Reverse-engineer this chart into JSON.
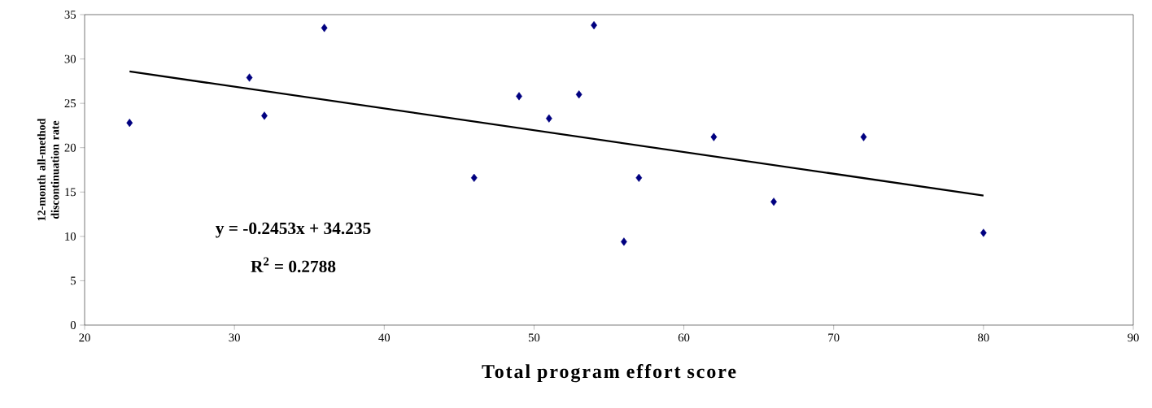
{
  "chart_data": {
    "type": "scatter",
    "xlabel": "Total program effort score",
    "ylabel": "12-month all-method discontinuation rate",
    "xlim": [
      20,
      90
    ],
    "ylim": [
      0,
      35
    ],
    "xticks": [
      20,
      30,
      40,
      50,
      60,
      70,
      80,
      90
    ],
    "yticks": [
      0,
      5,
      10,
      15,
      20,
      25,
      30,
      35
    ],
    "grid": false,
    "series": [
      {
        "color": "#000080",
        "marker": "diamond",
        "x": [
          23,
          31,
          32,
          36,
          46,
          49,
          51,
          53,
          54,
          56,
          57,
          62,
          66,
          72,
          80
        ],
        "values": [
          22.8,
          27.9,
          23.6,
          33.5,
          16.6,
          25.8,
          23.3,
          26.0,
          33.8,
          9.4,
          16.6,
          21.2,
          13.9,
          21.2,
          10.4
        ]
      },
      {
        "type": "line",
        "color": "#000000",
        "marker": "none",
        "line_style": "solid",
        "x": [
          23,
          80
        ],
        "values": [
          28.6,
          14.6
        ]
      }
    ],
    "annotations": [
      "y = -0.2453x + 34.235",
      "R$^{2}$ = 0.2788"
    ]
  }
}
